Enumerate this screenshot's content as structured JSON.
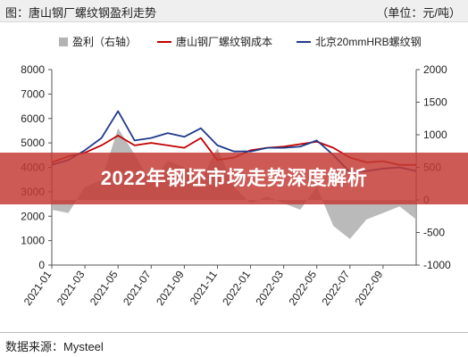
{
  "header": {
    "title": "图：唐山钢厂螺纹钢盈利走势",
    "unit": "（单位：元/吨）"
  },
  "banner": {
    "text": "2022年钢坯市场走势深度解析"
  },
  "footer": {
    "source": "数据来源：Mysteel"
  },
  "colors": {
    "profit": "#b3b3b3",
    "cost": "#c00000",
    "price": "#1f3a8a"
  },
  "chart_data": {
    "type": "line",
    "title": "唐山钢厂螺纹钢盈利走势",
    "x": [
      "2021-01",
      "2021-02",
      "2021-03",
      "2021-04",
      "2021-05",
      "2021-06",
      "2021-07",
      "2021-08",
      "2021-09",
      "2021-10",
      "2021-11",
      "2021-12",
      "2022-01",
      "2022-02",
      "2022-03",
      "2022-04",
      "2022-05",
      "2022-06",
      "2022-07",
      "2022-08",
      "2022-09",
      "2022-10",
      "2022-11"
    ],
    "x_tick_labels": [
      "2021-01",
      "2021-03",
      "2021-05",
      "2021-07",
      "2021-09",
      "2021-11",
      "2022-01",
      "2022-03",
      "2022-05",
      "2022-07",
      "2022-09"
    ],
    "y_left": {
      "ylim": [
        0,
        8000
      ],
      "ticks": [
        "0",
        "1000",
        "2000",
        "3000",
        "4000",
        "5000",
        "6000",
        "7000",
        "8000"
      ]
    },
    "y_right": {
      "ylim": [
        -1000,
        2000
      ],
      "ticks": [
        "-1000",
        "-500",
        "0",
        "500",
        "1000",
        "1500",
        "2000"
      ]
    },
    "grid": false,
    "legend_position": "top",
    "series": [
      {
        "name": "盈利（右轴）",
        "kind": "area",
        "axis": "right",
        "values": [
          -150,
          -200,
          200,
          300,
          1100,
          700,
          250,
          600,
          500,
          300,
          800,
          200,
          -50,
          50,
          -50,
          -150,
          200,
          -400,
          -600,
          -300,
          -200,
          -100,
          -300
        ]
      },
      {
        "name": "唐山钢厂螺纹钢成本",
        "kind": "line",
        "axis": "left",
        "values": [
          4200,
          4450,
          4600,
          4900,
          5300,
          4900,
          5000,
          4900,
          4800,
          5200,
          4300,
          4400,
          4700,
          4800,
          4850,
          4950,
          5050,
          4800,
          4400,
          4200,
          4250,
          4100,
          4100
        ]
      },
      {
        "name": "北京20mmHRB螺纹钢",
        "kind": "line",
        "axis": "left",
        "values": [
          4100,
          4300,
          4700,
          5200,
          6300,
          5100,
          5200,
          5400,
          5250,
          5600,
          4900,
          4650,
          4650,
          4800,
          4800,
          4850,
          5100,
          4500,
          3800,
          3850,
          3950,
          4000,
          3850
        ]
      }
    ]
  }
}
